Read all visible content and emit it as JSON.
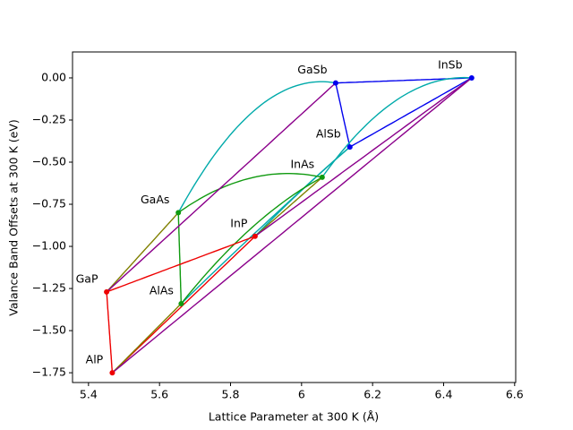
{
  "chart_data": {
    "type": "scatter",
    "xlabel": "Lattice Parameter at 300 K (Å)",
    "ylabel": "Valance Band Offsets at 300 K (eV)",
    "xlim": [
      5.355,
      6.603
    ],
    "ylim": [
      -1.808,
      0.154
    ],
    "xticks": [
      5.4,
      5.6,
      5.8,
      6.0,
      6.2,
      6.4,
      6.6
    ],
    "yticks": [
      {
        "value": 0,
        "label": "0.00"
      },
      {
        "value": -0.25,
        "label": "−0.25"
      },
      {
        "value": -0.5,
        "label": "−0.50"
      },
      {
        "value": -0.75,
        "label": "−0.75"
      },
      {
        "value": -1,
        "label": "−1.00"
      },
      {
        "value": -1.25,
        "label": "−1.25"
      },
      {
        "value": -1.5,
        "label": "−1.50"
      },
      {
        "value": -1.75,
        "label": "−1.75"
      }
    ],
    "points": [
      {
        "name": "GaSb",
        "x": 6.096,
        "y": -0.03,
        "color": "#0000ee"
      },
      {
        "name": "InSb",
        "x": 6.479,
        "y": 0,
        "color": "#0000ee"
      },
      {
        "name": "AlSb",
        "x": 6.136,
        "y": -0.41,
        "color": "#0000ee"
      },
      {
        "name": "InAs",
        "x": 6.058,
        "y": -0.59,
        "color": "#109a10"
      },
      {
        "name": "GaAs",
        "x": 5.653,
        "y": -0.8,
        "color": "#109a10"
      },
      {
        "name": "InP",
        "x": 5.869,
        "y": -0.94,
        "color": "#ee0000"
      },
      {
        "name": "GaP",
        "x": 5.451,
        "y": -1.27,
        "color": "#ee0000"
      },
      {
        "name": "AlAs",
        "x": 5.661,
        "y": -1.34,
        "color": "#109a10"
      },
      {
        "name": "AlP",
        "x": 5.467,
        "y": -1.75,
        "color": "#ee0000"
      }
    ],
    "links": [
      {
        "from": 0,
        "to": 1,
        "color": "#0000ee",
        "bowing": 0
      },
      {
        "from": 0,
        "to": 2,
        "color": "#0000ee",
        "bowing": 0
      },
      {
        "from": 2,
        "to": 1,
        "color": "#0000ee",
        "bowing": 0
      },
      {
        "from": 4,
        "to": 0,
        "color": "#00aaaa",
        "bowing": 0.94
      },
      {
        "from": 3,
        "to": 1,
        "color": "#00aaaa",
        "bowing": 0.66
      },
      {
        "from": 7,
        "to": 2,
        "color": "#00aaaa",
        "bowing": 0.05
      },
      {
        "from": 5,
        "to": 2,
        "color": "#00aaaa",
        "bowing": 0.05
      },
      {
        "from": 4,
        "to": 3,
        "color": "#109a10",
        "bowing": 0.4
      },
      {
        "from": 4,
        "to": 7,
        "color": "#109a10",
        "bowing": 0
      },
      {
        "from": 7,
        "to": 3,
        "color": "#109a10",
        "bowing": 0.3
      },
      {
        "from": 6,
        "to": 5,
        "color": "#ee0000",
        "bowing": 0
      },
      {
        "from": 6,
        "to": 8,
        "color": "#ee0000",
        "bowing": 0
      },
      {
        "from": 8,
        "to": 5,
        "color": "#ee0000",
        "bowing": 0
      },
      {
        "from": 6,
        "to": 4,
        "color": "#808000",
        "bowing": 0
      },
      {
        "from": 8,
        "to": 7,
        "color": "#808000",
        "bowing": 0
      },
      {
        "from": 5,
        "to": 3,
        "color": "#808000",
        "bowing": 0
      },
      {
        "from": 6,
        "to": 0,
        "color": "#8b008b",
        "bowing": 0
      },
      {
        "from": 8,
        "to": 1,
        "color": "#8b008b",
        "bowing": 0
      },
      {
        "from": 5,
        "to": 1,
        "color": "#8b008b",
        "bowing": 0
      }
    ]
  }
}
